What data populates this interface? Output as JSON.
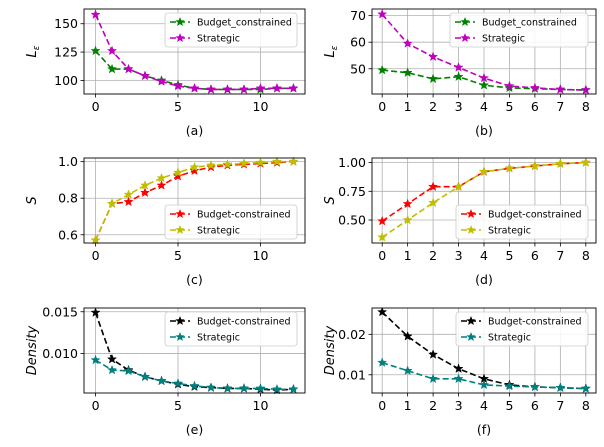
{
  "chart_data": [
    {
      "type": "line",
      "caption": "(a)",
      "ylabel": "L_ε",
      "ylabel_sub": "ε",
      "xlim": [
        -0.7,
        12.7
      ],
      "ylim": [
        88,
        163
      ],
      "xticks": [
        0,
        5,
        10
      ],
      "xtick_labels": [
        "0",
        "5",
        "10"
      ],
      "yticks": [
        100,
        125,
        150
      ],
      "ytick_labels": [
        "100",
        "125",
        "150"
      ],
      "x": [
        0,
        1,
        2,
        3,
        4,
        5,
        6,
        7,
        8,
        9,
        10,
        11,
        12
      ],
      "series": [
        {
          "name": "Budget_constrained",
          "color": "#008000",
          "values": [
            126,
            110,
            110,
            104,
            100,
            96,
            93,
            92,
            92,
            92,
            92,
            93,
            93
          ]
        },
        {
          "name": "Strategic",
          "color": "#bf00bf",
          "values": [
            158,
            126,
            110,
            104,
            99,
            95,
            93,
            92,
            92,
            92,
            93,
            93,
            93
          ]
        }
      ],
      "grid": true,
      "legend_loc": "upper right"
    },
    {
      "type": "line",
      "caption": "(b)",
      "ylabel": "L_ε",
      "ylabel_sub": "ε",
      "xlim": [
        -0.4,
        8.4
      ],
      "ylim": [
        40.5,
        72.5
      ],
      "xticks": [
        0,
        1,
        2,
        3,
        4,
        5,
        6,
        7,
        8
      ],
      "xtick_labels": [
        "0",
        "1",
        "2",
        "3",
        "4",
        "5",
        "6",
        "7",
        "8"
      ],
      "yticks": [
        50,
        60,
        70
      ],
      "ytick_labels": [
        "50",
        "60",
        "70"
      ],
      "x": [
        0,
        1,
        2,
        3,
        4,
        5,
        6,
        7,
        8
      ],
      "series": [
        {
          "name": "Budget_constrained",
          "color": "#008000",
          "values": [
            49.5,
            48.5,
            46.2,
            47,
            43.8,
            42.8,
            42.5,
            42.2,
            42
          ]
        },
        {
          "name": "Strategic",
          "color": "#bf00bf",
          "values": [
            70.5,
            59.5,
            54.5,
            50.5,
            46.5,
            43.5,
            42.8,
            42.2,
            42
          ]
        }
      ],
      "grid": true,
      "legend_loc": "upper right"
    },
    {
      "type": "line",
      "caption": "(c)",
      "ylabel": "S",
      "xlim": [
        -0.7,
        12.7
      ],
      "ylim": [
        0.555,
        1.02
      ],
      "xticks": [
        0,
        5,
        10
      ],
      "xtick_labels": [
        "0",
        "5",
        "10"
      ],
      "yticks": [
        0.6,
        0.8,
        1.0
      ],
      "ytick_labels": [
        "0.6",
        "0.8",
        "1.0"
      ],
      "x": [
        0,
        1,
        2,
        3,
        4,
        5,
        6,
        7,
        8,
        9,
        10,
        11,
        12
      ],
      "series": [
        {
          "name": "Budget-constrained",
          "color": "#ff0000",
          "values": [
            0.57,
            0.77,
            0.78,
            0.83,
            0.87,
            0.92,
            0.95,
            0.97,
            0.98,
            0.985,
            0.99,
            0.995,
            1.0
          ]
        },
        {
          "name": "Strategic",
          "color": "#bfbf00",
          "values": [
            0.57,
            0.77,
            0.82,
            0.87,
            0.91,
            0.94,
            0.97,
            0.98,
            0.985,
            0.99,
            0.995,
            1.0,
            1.0
          ]
        }
      ],
      "grid": true,
      "legend_loc": "lower right"
    },
    {
      "type": "line",
      "caption": "(d)",
      "ylabel": "S",
      "xlim": [
        -0.4,
        8.4
      ],
      "ylim": [
        0.3,
        1.04
      ],
      "xticks": [
        0,
        1,
        2,
        3,
        4,
        5,
        6,
        7,
        8
      ],
      "xtick_labels": [
        "0",
        "1",
        "2",
        "3",
        "4",
        "5",
        "6",
        "7",
        "8"
      ],
      "yticks": [
        0.5,
        0.75,
        1.0
      ],
      "ytick_labels": [
        "0.50",
        "0.75",
        "1.00"
      ],
      "x": [
        0,
        1,
        2,
        3,
        4,
        5,
        6,
        7,
        8
      ],
      "series": [
        {
          "name": "Budget-constrained",
          "color": "#ff0000",
          "values": [
            0.49,
            0.64,
            0.79,
            0.79,
            0.92,
            0.95,
            0.97,
            0.99,
            1.0
          ]
        },
        {
          "name": "Strategic",
          "color": "#bfbf00",
          "values": [
            0.35,
            0.5,
            0.65,
            0.79,
            0.92,
            0.95,
            0.97,
            0.99,
            1.0
          ]
        }
      ],
      "grid": true,
      "legend_loc": "lower right"
    },
    {
      "type": "line",
      "caption": "(e)",
      "ylabel": "Density",
      "xlim": [
        -0.7,
        12.7
      ],
      "ylim": [
        0.00525,
        0.01545
      ],
      "xticks": [
        0,
        5,
        10
      ],
      "xtick_labels": [
        "0",
        "5",
        "10"
      ],
      "yticks": [
        0.01,
        0.015
      ],
      "ytick_labels": [
        "0.010",
        "0.015"
      ],
      "x": [
        0,
        1,
        2,
        3,
        4,
        5,
        6,
        7,
        8,
        9,
        10,
        11,
        12
      ],
      "series": [
        {
          "name": "Budget-constrained",
          "color": "#000000",
          "values": [
            0.0149,
            0.0093,
            0.008,
            0.0072,
            0.0067,
            0.0063,
            0.006,
            0.0059,
            0.0058,
            0.0058,
            0.0057,
            0.0056,
            0.0057
          ]
        },
        {
          "name": "Strategic",
          "color": "#008080",
          "values": [
            0.0092,
            0.008,
            0.0079,
            0.0072,
            0.0067,
            0.0064,
            0.0061,
            0.0059,
            0.0058,
            0.0058,
            0.0058,
            0.0057,
            0.0057
          ]
        }
      ],
      "grid": true,
      "legend_loc": "upper right"
    },
    {
      "type": "line",
      "caption": "(f)",
      "ylabel": "Density",
      "xlim": [
        -0.4,
        8.4
      ],
      "ylim": [
        0.0055,
        0.0265
      ],
      "xticks": [
        0,
        1,
        2,
        3,
        4,
        5,
        6,
        7,
        8
      ],
      "xtick_labels": [
        "0",
        "1",
        "2",
        "3",
        "4",
        "5",
        "6",
        "7",
        "8"
      ],
      "yticks": [
        0.01,
        0.02
      ],
      "ytick_labels": [
        "0.01",
        "0.02"
      ],
      "x": [
        0,
        1,
        2,
        3,
        4,
        5,
        6,
        7,
        8
      ],
      "series": [
        {
          "name": "Budget-constrained",
          "color": "#000000",
          "values": [
            0.0255,
            0.0195,
            0.015,
            0.0115,
            0.009,
            0.0075,
            0.007,
            0.0068,
            0.0066
          ]
        },
        {
          "name": "Strategic",
          "color": "#008080",
          "values": [
            0.013,
            0.011,
            0.009,
            0.009,
            0.0075,
            0.0072,
            0.007,
            0.0068,
            0.0066
          ]
        }
      ],
      "grid": true,
      "legend_loc": "upper right"
    }
  ]
}
